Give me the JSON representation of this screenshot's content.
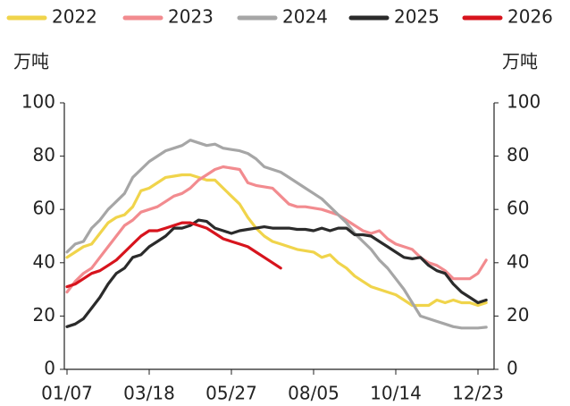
{
  "chart_data": {
    "type": "line",
    "y_label": "万吨",
    "y2_label": "万吨",
    "categories": [
      "01/07",
      null,
      null,
      null,
      null,
      null,
      null,
      null,
      null,
      null,
      "03/18",
      null,
      null,
      null,
      null,
      null,
      null,
      null,
      null,
      null,
      "05/27",
      null,
      null,
      null,
      null,
      null,
      null,
      null,
      null,
      null,
      "08/05",
      null,
      null,
      null,
      null,
      null,
      null,
      null,
      null,
      null,
      "10/14",
      null,
      null,
      null,
      null,
      null,
      null,
      null,
      null,
      null,
      "12/23",
      null
    ],
    "ylim": [
      0,
      100
    ],
    "yticks": [
      0,
      20,
      40,
      60,
      80,
      100
    ],
    "y2lim": [
      0,
      100
    ],
    "y2ticks": [
      0,
      20,
      40,
      60,
      80,
      100
    ],
    "legend": "top",
    "series": [
      {
        "name": "2022",
        "color": "#f0d44b",
        "values": [
          42,
          44,
          46,
          47,
          51,
          55,
          57,
          58,
          61,
          67,
          68,
          70,
          72,
          72.5,
          73,
          73,
          72,
          71,
          71,
          68,
          65,
          62,
          57,
          53,
          50,
          48,
          47,
          46,
          45,
          44.5,
          44,
          42,
          43,
          40,
          38,
          35,
          33,
          31,
          30,
          29,
          28,
          26,
          24,
          24,
          24,
          26,
          25,
          26,
          25,
          25,
          24,
          25
        ]
      },
      {
        "name": "2023",
        "color": "#f28b8f",
        "values": [
          29,
          33,
          36,
          38,
          42,
          46,
          50,
          54,
          56,
          59,
          60,
          61,
          63,
          65,
          66,
          68,
          71,
          73,
          75,
          76,
          75.5,
          75,
          70,
          69,
          68.5,
          68,
          65,
          62,
          61,
          61,
          60.5,
          60,
          59,
          58,
          56,
          54,
          52,
          51,
          52,
          49,
          47,
          46,
          45,
          42,
          40,
          39,
          37,
          34,
          34,
          34,
          36,
          41
        ]
      },
      {
        "name": "2024",
        "color": "#a6a6a6",
        "values": [
          44,
          47,
          48,
          53,
          56,
          60,
          63,
          66,
          72,
          75,
          78,
          80,
          82,
          83,
          84,
          86,
          85,
          84,
          84.5,
          83,
          82.5,
          82,
          81,
          79,
          76,
          75,
          74,
          72,
          70,
          68,
          66,
          64,
          61,
          58,
          55,
          51,
          48,
          45,
          41,
          38,
          34,
          30,
          25,
          20,
          19,
          18,
          17,
          16,
          15.5,
          15.5,
          15.5,
          15.8
        ]
      },
      {
        "name": "2025",
        "color": "#2b2b2b",
        "values": [
          16,
          17,
          19,
          23,
          27,
          32,
          36,
          38,
          42,
          43,
          46,
          48,
          50,
          53,
          53,
          54,
          56,
          55.5,
          53,
          52,
          51,
          52,
          52.5,
          53,
          53.5,
          53,
          53,
          53,
          52.5,
          52.5,
          52,
          53,
          52,
          53,
          53,
          50.5,
          50.5,
          50,
          48,
          46,
          44,
          42,
          41.5,
          42,
          39,
          37,
          36,
          32,
          29,
          27,
          25,
          26
        ]
      },
      {
        "name": "2026",
        "color": "#d7141d",
        "values": [
          31,
          32,
          34,
          36,
          37,
          39,
          41,
          44,
          47,
          50,
          52,
          52,
          53,
          54,
          55,
          55,
          54,
          53,
          51,
          49,
          48,
          47,
          46,
          44,
          42,
          40,
          38,
          null,
          null,
          null,
          null,
          null,
          null,
          null,
          null,
          null,
          null,
          null,
          null,
          null,
          null,
          null,
          null,
          null,
          null,
          null,
          null,
          null,
          null,
          null,
          null,
          null
        ]
      }
    ]
  }
}
